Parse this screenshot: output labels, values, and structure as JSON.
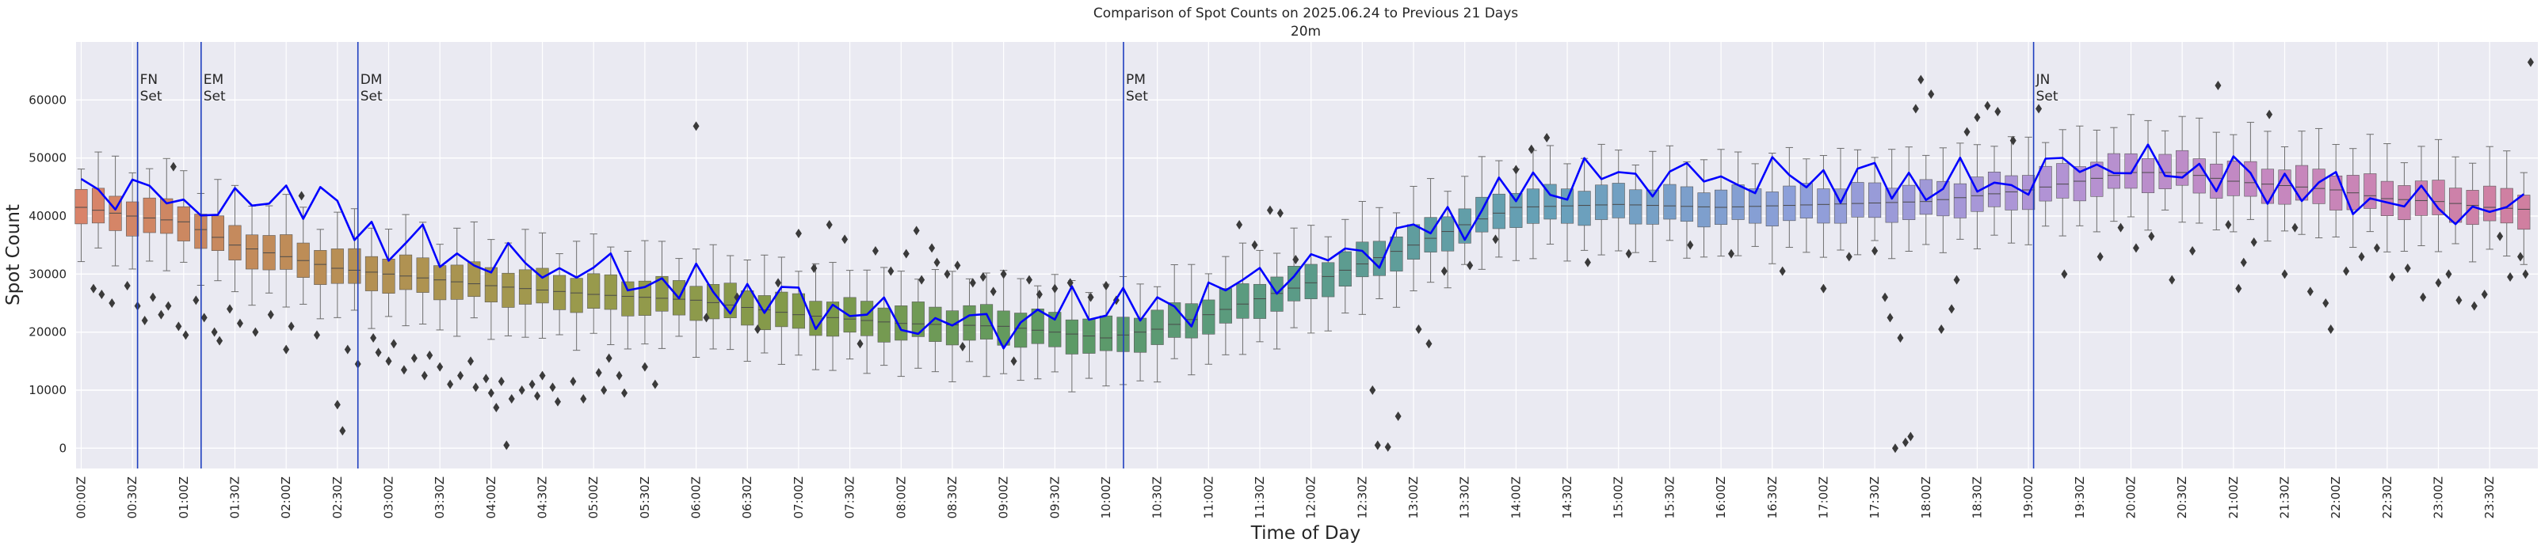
{
  "chart_data": {
    "type": "box",
    "title": "Comparison of Spot Counts on 2025.06.24 to Previous 21 Days",
    "subtitle": "20m",
    "xlabel": "Time of Day",
    "ylabel": "Spot Count",
    "ylim": [
      -3500,
      70000
    ],
    "yticks": [
      0,
      10000,
      20000,
      30000,
      40000,
      50000,
      60000
    ],
    "xlim_hours": [
      -0.05,
      23.97
    ],
    "bin_minutes": 10,
    "xtick_labels": [
      "00:00Z",
      "00:30Z",
      "01:00Z",
      "01:30Z",
      "02:00Z",
      "02:30Z",
      "03:00Z",
      "03:30Z",
      "04:00Z",
      "04:30Z",
      "05:00Z",
      "05:30Z",
      "06:00Z",
      "06:30Z",
      "07:00Z",
      "07:30Z",
      "08:00Z",
      "08:30Z",
      "09:00Z",
      "09:30Z",
      "10:00Z",
      "10:30Z",
      "11:00Z",
      "11:30Z",
      "12:00Z",
      "12:30Z",
      "13:00Z",
      "13:30Z",
      "14:00Z",
      "14:30Z",
      "15:00Z",
      "15:30Z",
      "16:00Z",
      "16:30Z",
      "17:00Z",
      "17:30Z",
      "18:00Z",
      "18:30Z",
      "19:00Z",
      "19:30Z",
      "20:00Z",
      "20:30Z",
      "21:00Z",
      "21:30Z",
      "22:00Z",
      "22:30Z",
      "23:00Z",
      "23:30Z"
    ],
    "median_anchors": [
      [
        0,
        41500
      ],
      [
        0.5,
        40000
      ],
      [
        1,
        39000
      ],
      [
        1.5,
        35000
      ],
      [
        2,
        33000
      ],
      [
        2.5,
        31000
      ],
      [
        3,
        30000
      ],
      [
        4,
        28000
      ],
      [
        5,
        26500
      ],
      [
        6,
        25500
      ],
      [
        7,
        23000
      ],
      [
        8,
        21500
      ],
      [
        9,
        21000
      ],
      [
        10,
        19000
      ],
      [
        10.5,
        20500
      ],
      [
        11,
        23000
      ],
      [
        12,
        28500
      ],
      [
        13,
        35000
      ],
      [
        13.5,
        38500
      ],
      [
        14,
        41500
      ],
      [
        15,
        42000
      ],
      [
        16,
        41500
      ],
      [
        17,
        42000
      ],
      [
        18,
        42500
      ],
      [
        19,
        44500
      ],
      [
        19.5,
        46000
      ],
      [
        20,
        47500
      ],
      [
        20.5,
        47500
      ],
      [
        21,
        46000
      ],
      [
        22,
        44500
      ],
      [
        22.5,
        43000
      ],
      [
        23,
        42500
      ],
      [
        23.5,
        41500
      ],
      [
        24,
        41000
      ]
    ],
    "current_day_anchors": [
      [
        0,
        45500
      ],
      [
        0.5,
        44000
      ],
      [
        1,
        42500
      ],
      [
        1.5,
        41000
      ],
      [
        2,
        44500
      ],
      [
        2.5,
        40500
      ],
      [
        3,
        35500
      ],
      [
        4,
        32000
      ],
      [
        5,
        30500
      ],
      [
        6,
        27500
      ],
      [
        7,
        25000
      ],
      [
        8,
        22000
      ],
      [
        9,
        21000
      ],
      [
        10,
        25500
      ],
      [
        10.5,
        23000
      ],
      [
        11,
        26500
      ],
      [
        12,
        31500
      ],
      [
        12.5,
        34000
      ],
      [
        13,
        37000
      ],
      [
        13.5,
        40000
      ],
      [
        14,
        44500
      ],
      [
        14.5,
        46000
      ],
      [
        15,
        47000
      ],
      [
        16,
        46500
      ],
      [
        17,
        46500
      ],
      [
        18,
        45500
      ],
      [
        19,
        46000
      ],
      [
        19.5,
        49500
      ],
      [
        20,
        48000
      ],
      [
        20.5,
        48500
      ],
      [
        21,
        46500
      ],
      [
        21.5,
        45500
      ],
      [
        22,
        44000
      ],
      [
        23,
        41500
      ],
      [
        24,
        40500
      ]
    ],
    "outliers": [
      [
        0.12,
        27500
      ],
      [
        0.2,
        26500
      ],
      [
        0.3,
        25000
      ],
      [
        0.45,
        28000
      ],
      [
        0.55,
        24500
      ],
      [
        0.62,
        22000
      ],
      [
        0.7,
        26000
      ],
      [
        0.78,
        23000
      ],
      [
        0.85,
        24500
      ],
      [
        0.9,
        48500
      ],
      [
        0.95,
        21000
      ],
      [
        1.02,
        19500
      ],
      [
        1.12,
        25500
      ],
      [
        1.2,
        22500
      ],
      [
        1.3,
        20000
      ],
      [
        1.35,
        18500
      ],
      [
        1.45,
        24000
      ],
      [
        1.55,
        21500
      ],
      [
        1.7,
        20000
      ],
      [
        1.85,
        23000
      ],
      [
        2.0,
        17000
      ],
      [
        2.05,
        21000
      ],
      [
        2.15,
        43500
      ],
      [
        2.3,
        19500
      ],
      [
        2.5,
        7500
      ],
      [
        2.55,
        3000
      ],
      [
        2.6,
        17000
      ],
      [
        2.7,
        14500
      ],
      [
        2.85,
        19000
      ],
      [
        2.9,
        16500
      ],
      [
        3.0,
        15000
      ],
      [
        3.05,
        18000
      ],
      [
        3.15,
        13500
      ],
      [
        3.25,
        15500
      ],
      [
        3.35,
        12500
      ],
      [
        3.4,
        16000
      ],
      [
        3.5,
        14000
      ],
      [
        3.6,
        11000
      ],
      [
        3.7,
        12500
      ],
      [
        3.8,
        15000
      ],
      [
        3.85,
        10500
      ],
      [
        3.95,
        12000
      ],
      [
        4.0,
        9500
      ],
      [
        4.05,
        7000
      ],
      [
        4.1,
        11500
      ],
      [
        4.15,
        500
      ],
      [
        4.2,
        8500
      ],
      [
        4.3,
        10000
      ],
      [
        4.4,
        11000
      ],
      [
        4.45,
        9000
      ],
      [
        4.5,
        12500
      ],
      [
        4.6,
        10500
      ],
      [
        4.65,
        8000
      ],
      [
        4.8,
        11500
      ],
      [
        4.9,
        8500
      ],
      [
        5.05,
        13000
      ],
      [
        5.1,
        10000
      ],
      [
        5.15,
        15500
      ],
      [
        5.25,
        12500
      ],
      [
        5.3,
        9500
      ],
      [
        5.5,
        14000
      ],
      [
        5.6,
        11000
      ],
      [
        6.0,
        55500
      ],
      [
        6.1,
        22500
      ],
      [
        6.4,
        26000
      ],
      [
        6.6,
        20500
      ],
      [
        6.8,
        28500
      ],
      [
        7.0,
        37000
      ],
      [
        7.15,
        31000
      ],
      [
        7.3,
        38500
      ],
      [
        7.45,
        36000
      ],
      [
        7.6,
        18000
      ],
      [
        7.75,
        34000
      ],
      [
        7.9,
        30500
      ],
      [
        8.05,
        33500
      ],
      [
        8.15,
        37500
      ],
      [
        8.2,
        29000
      ],
      [
        8.3,
        34500
      ],
      [
        8.35,
        32000
      ],
      [
        8.45,
        30000
      ],
      [
        8.55,
        31500
      ],
      [
        8.6,
        17500
      ],
      [
        8.7,
        28500
      ],
      [
        8.8,
        29500
      ],
      [
        8.9,
        27000
      ],
      [
        9.0,
        30000
      ],
      [
        9.1,
        15000
      ],
      [
        9.25,
        29000
      ],
      [
        9.35,
        26500
      ],
      [
        9.5,
        27500
      ],
      [
        9.65,
        28500
      ],
      [
        9.85,
        26000
      ],
      [
        10.0,
        28000
      ],
      [
        10.1,
        25500
      ],
      [
        11.3,
        38500
      ],
      [
        11.45,
        35000
      ],
      [
        11.6,
        41000
      ],
      [
        11.7,
        40500
      ],
      [
        11.85,
        32500
      ],
      [
        12.6,
        10000
      ],
      [
        12.65,
        500
      ],
      [
        12.75,
        200
      ],
      [
        12.85,
        5500
      ],
      [
        13.05,
        20500
      ],
      [
        13.15,
        18000
      ],
      [
        13.3,
        30500
      ],
      [
        13.55,
        31500
      ],
      [
        13.8,
        36000
      ],
      [
        14.0,
        48000
      ],
      [
        14.15,
        51500
      ],
      [
        14.3,
        53500
      ],
      [
        14.7,
        32000
      ],
      [
        15.1,
        33500
      ],
      [
        15.7,
        35000
      ],
      [
        16.1,
        33500
      ],
      [
        16.6,
        30500
      ],
      [
        17.0,
        27500
      ],
      [
        17.25,
        33000
      ],
      [
        17.5,
        34000
      ],
      [
        17.6,
        26000
      ],
      [
        17.65,
        22500
      ],
      [
        17.7,
        0
      ],
      [
        17.75,
        19000
      ],
      [
        17.8,
        1000
      ],
      [
        17.85,
        2000
      ],
      [
        17.9,
        58500
      ],
      [
        17.95,
        63500
      ],
      [
        18.05,
        61000
      ],
      [
        18.15,
        20500
      ],
      [
        18.25,
        24000
      ],
      [
        18.3,
        29000
      ],
      [
        18.4,
        54500
      ],
      [
        18.5,
        57000
      ],
      [
        18.6,
        59000
      ],
      [
        18.7,
        58000
      ],
      [
        18.85,
        53000
      ],
      [
        19.1,
        58500
      ],
      [
        19.35,
        30000
      ],
      [
        19.7,
        33000
      ],
      [
        19.9,
        38000
      ],
      [
        20.05,
        34500
      ],
      [
        20.2,
        36500
      ],
      [
        20.4,
        29000
      ],
      [
        20.6,
        34000
      ],
      [
        20.85,
        62500
      ],
      [
        20.95,
        38500
      ],
      [
        21.05,
        27500
      ],
      [
        21.1,
        32000
      ],
      [
        21.2,
        35500
      ],
      [
        21.35,
        57500
      ],
      [
        21.5,
        30000
      ],
      [
        21.6,
        38000
      ],
      [
        21.75,
        27000
      ],
      [
        21.9,
        25000
      ],
      [
        21.95,
        20500
      ],
      [
        22.1,
        30500
      ],
      [
        22.25,
        33000
      ],
      [
        22.4,
        34500
      ],
      [
        22.55,
        29500
      ],
      [
        22.7,
        31000
      ],
      [
        22.85,
        26000
      ],
      [
        23.0,
        28500
      ],
      [
        23.1,
        30000
      ],
      [
        23.2,
        25500
      ],
      [
        23.35,
        24500
      ],
      [
        23.45,
        26500
      ],
      [
        23.6,
        36500
      ],
      [
        23.7,
        29500
      ],
      [
        23.8,
        33000
      ],
      [
        23.85,
        30000
      ],
      [
        23.9,
        66500
      ]
    ],
    "events": [
      {
        "label": "FN",
        "sublabel": "Set",
        "hour": 0.55
      },
      {
        "label": "EM",
        "sublabel": "Set",
        "hour": 1.17
      },
      {
        "label": "DM",
        "sublabel": "Set",
        "hour": 2.7
      },
      {
        "label": "PM",
        "sublabel": "Set",
        "hour": 10.17
      },
      {
        "label": "JN",
        "sublabel": "Set",
        "hour": 19.05
      }
    ],
    "colors": {
      "background": "#eaeaf2",
      "grid": "#ffffff",
      "current_line": "#0000ff",
      "event_line": "#1f3fbf",
      "whisker": "#6e6e6e",
      "outlier": "#3a3a3a",
      "gradient": [
        "#d9836a",
        "#ba8e55",
        "#9b9a4c",
        "#7f9a4a",
        "#5c9a64",
        "#5b9b88",
        "#66a0b8",
        "#8c9fd9",
        "#b094d6",
        "#c687bf",
        "#d07fa0"
      ]
    },
    "grid": true
  }
}
